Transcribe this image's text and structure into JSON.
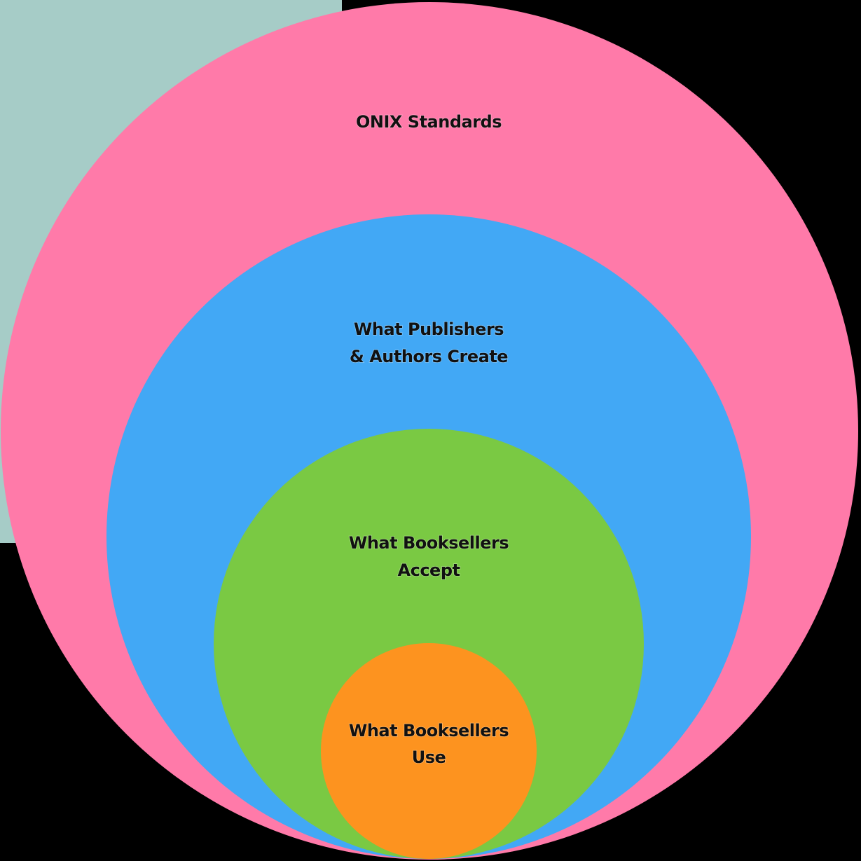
{
  "nodes": [
    {
      "label": [
        "ONIX Standards"
      ]
    },
    {
      "label": [
        "What Publishers",
        "& Authors Create"
      ]
    },
    {
      "label": [
        "What Booksellers",
        "Accept"
      ]
    },
    {
      "label": [
        "What Booksellers",
        "Use"
      ]
    }
  ]
}
